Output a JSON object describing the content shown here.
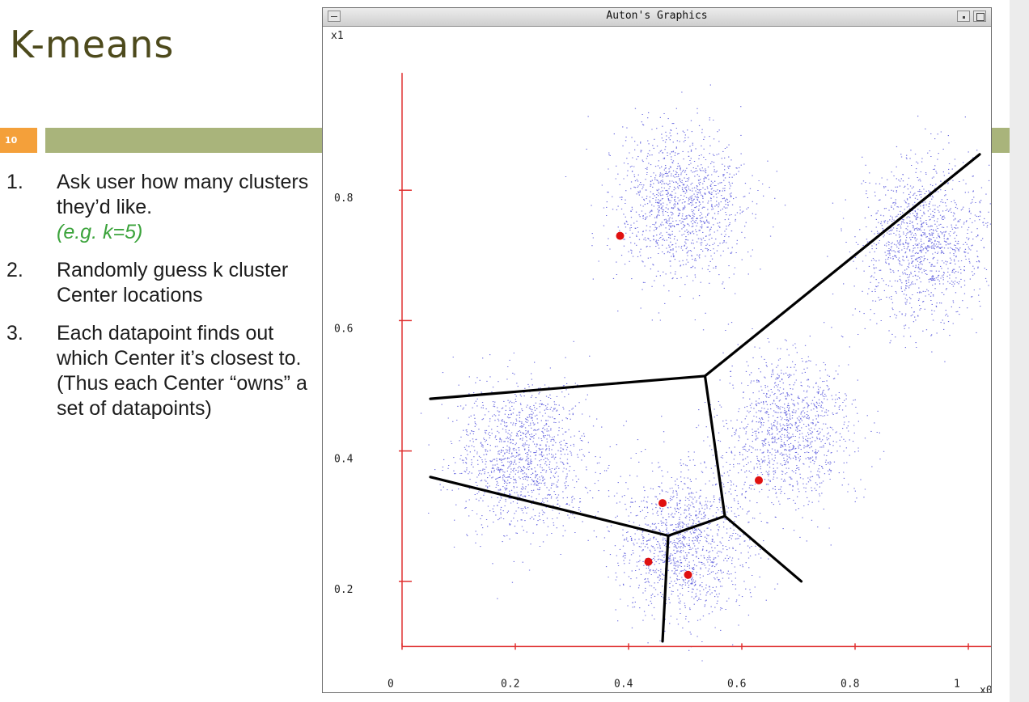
{
  "slide": {
    "title": "K-means",
    "number": "10",
    "steps": [
      {
        "number": "1.",
        "text": "Ask user how many clusters they’d like.",
        "example": "(e.g. k=5)"
      },
      {
        "number": "2.",
        "text": "Randomly guess k cluster Center locations"
      },
      {
        "number": "3.",
        "text": "Each datapoint finds out which Center it’s closest to. (Thus each Center “owns” a set of datapoints)"
      }
    ]
  },
  "window": {
    "title": "Auton's Graphics"
  },
  "chart_data": {
    "type": "scatter",
    "xlabel": "x0",
    "ylabel": "x1",
    "xlim": [
      0,
      1.04
    ],
    "ylim": [
      0.1,
      0.98
    ],
    "x_ticks": [
      0,
      0.2,
      0.4,
      0.6,
      0.8,
      1
    ],
    "x_tick_labels": [
      "0",
      "0.2",
      "0.4",
      "0.6",
      "0.8",
      "1"
    ],
    "y_ticks": [
      0.2,
      0.4,
      0.6,
      0.8
    ],
    "y_tick_labels": [
      "0.2",
      "0.4",
      "0.6",
      "0.8"
    ],
    "clusters": [
      {
        "center": [
          0.49,
          0.78
        ],
        "spread": 0.058,
        "count": 1300
      },
      {
        "center": [
          0.92,
          0.72
        ],
        "spread": 0.058,
        "count": 1300
      },
      {
        "center": [
          0.21,
          0.39
        ],
        "spread": 0.058,
        "count": 1300
      },
      {
        "center": [
          0.68,
          0.43
        ],
        "spread": 0.058,
        "count": 1200
      },
      {
        "center": [
          0.5,
          0.26
        ],
        "spread": 0.058,
        "count": 1300
      }
    ],
    "centers": [
      [
        0.385,
        0.73
      ],
      [
        0.46,
        0.32
      ],
      [
        0.63,
        0.355
      ],
      [
        0.435,
        0.23
      ],
      [
        0.505,
        0.21
      ]
    ],
    "boundaries": [
      [
        [
          0.05,
          0.48
        ],
        [
          0.535,
          0.515
        ]
      ],
      [
        [
          0.535,
          0.515
        ],
        [
          1.02,
          0.855
        ]
      ],
      [
        [
          0.535,
          0.515
        ],
        [
          0.57,
          0.3
        ]
      ],
      [
        [
          0.05,
          0.36
        ],
        [
          0.47,
          0.27
        ]
      ],
      [
        [
          0.47,
          0.27
        ],
        [
          0.57,
          0.3
        ]
      ],
      [
        [
          0.57,
          0.3
        ],
        [
          0.705,
          0.2
        ]
      ],
      [
        [
          0.47,
          0.27
        ],
        [
          0.46,
          0.108
        ]
      ]
    ],
    "colors": {
      "points": "#3b3bd6",
      "centers": "#e01010",
      "axes": "#e03030",
      "boundaries": "#000000"
    }
  }
}
